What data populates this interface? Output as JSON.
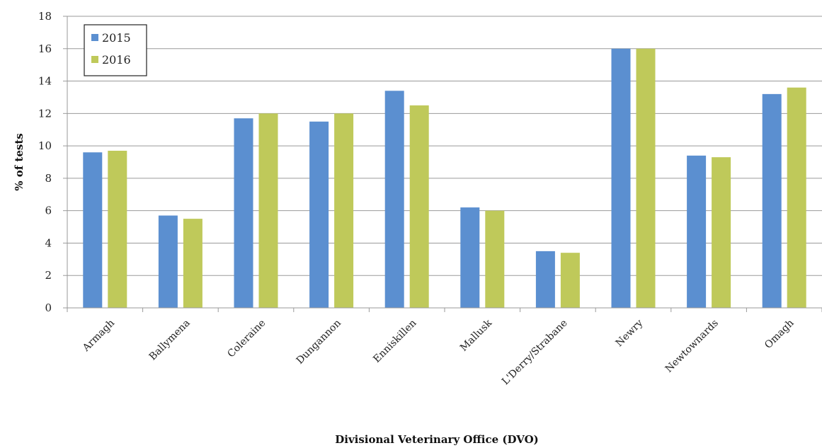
{
  "chart_data": {
    "type": "bar",
    "xlabel": "Divisional Veterinary Office (DVO)",
    "ylabel": "% of tests",
    "ylim": [
      0,
      18
    ],
    "yticks": [
      0,
      2,
      4,
      6,
      8,
      10,
      12,
      14,
      16,
      18
    ],
    "grid": true,
    "legend_position": "top-left",
    "categories": [
      "Armagh",
      "Ballymena",
      "Coleraine",
      "Dungannon",
      "Enniskillen",
      "Mallusk",
      "L'Derry/Strabane",
      "Newry",
      "Newtownards",
      "Omagh"
    ],
    "series": [
      {
        "name": "2015",
        "color": "#5b8fd0",
        "values": [
          9.6,
          5.7,
          11.7,
          11.5,
          13.4,
          6.2,
          3.5,
          16.0,
          9.4,
          13.2
        ]
      },
      {
        "name": "2016",
        "color": "#bfc95a",
        "values": [
          9.7,
          5.5,
          12.0,
          12.0,
          12.5,
          6.0,
          3.4,
          16.0,
          9.3,
          13.6
        ]
      }
    ]
  }
}
